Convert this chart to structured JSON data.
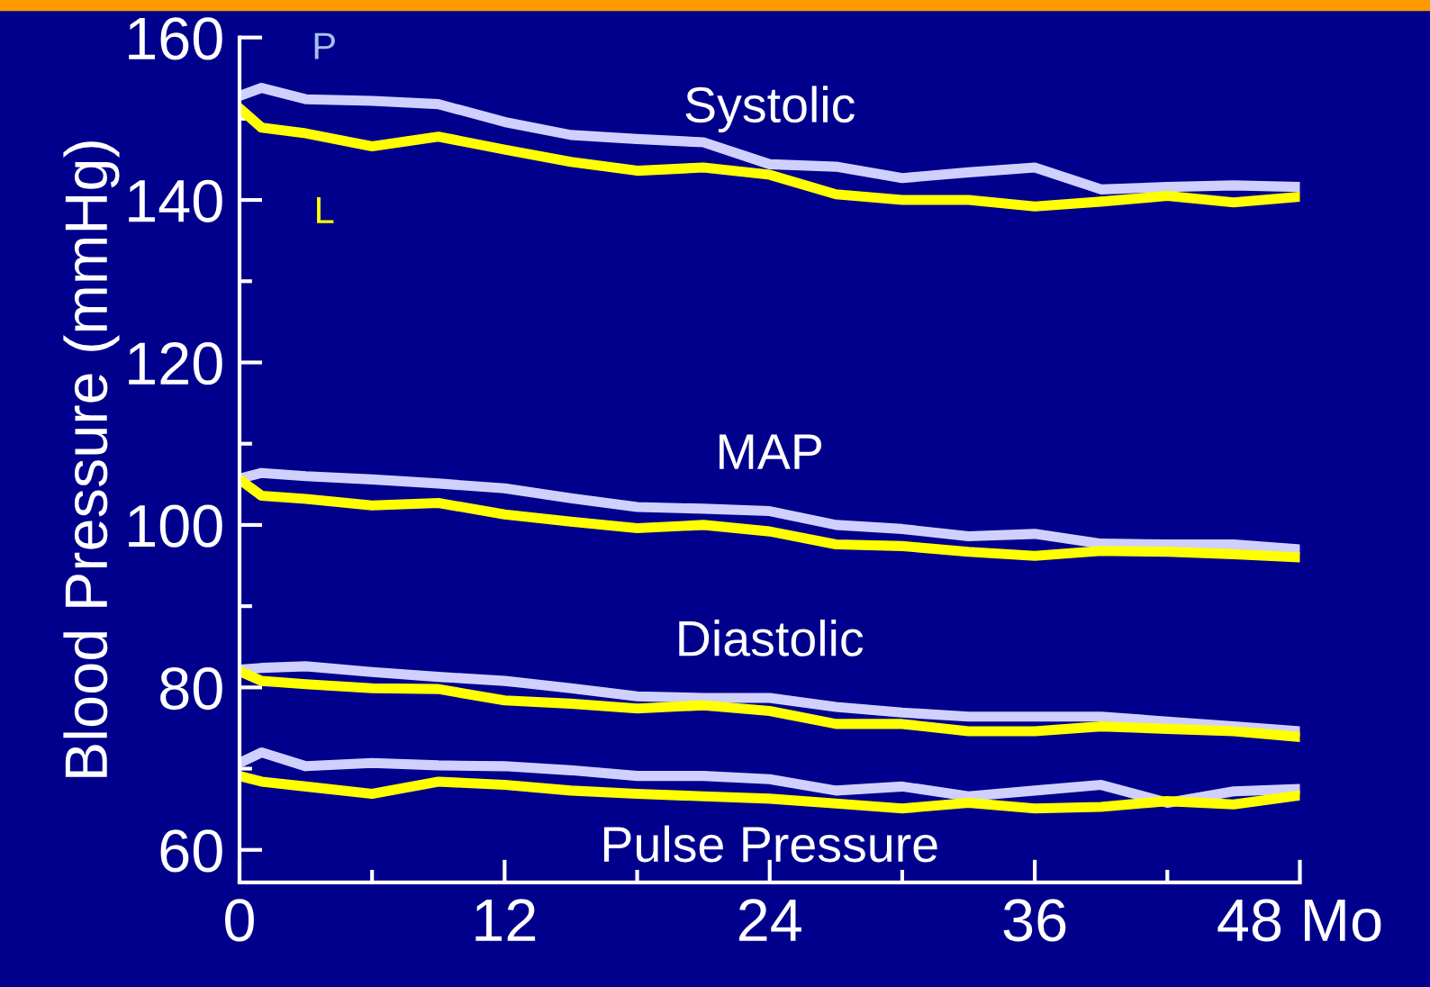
{
  "chart_data": {
    "type": "line",
    "ylabel": "Blood Pressure (mmHg)",
    "x": [
      0,
      1,
      3,
      6,
      9,
      12,
      15,
      18,
      21,
      24,
      27,
      30,
      33,
      36,
      39,
      42,
      45,
      48
    ],
    "series": [
      {
        "name": "P",
        "color": "#d0d0ff",
        "values": [
          152.8,
          153.8,
          152.4,
          152.2,
          151.8,
          149.6,
          148,
          147.5,
          147.1,
          144.4,
          144.1,
          142.7,
          143.4,
          144,
          141.3,
          141.6,
          141.8,
          141.6
        ]
      },
      {
        "name": "L",
        "color": "#ffff00",
        "values": [
          151.3,
          148.9,
          148.2,
          146.6,
          147.8,
          146.2,
          144.7,
          143.6,
          144,
          143.1,
          140.7,
          140,
          140,
          139.2,
          139.8,
          140.5,
          139.7,
          140.4
        ]
      },
      {
        "color": "#d0d0ff",
        "values": [
          105.7,
          106.4,
          106,
          105.6,
          105.1,
          104.5,
          103.3,
          102.2,
          102,
          101.7,
          100,
          99.5,
          98.6,
          98.9,
          97.7,
          97.6,
          97.6,
          97
        ]
      },
      {
        "color": "#ffff00",
        "values": [
          105.6,
          103.6,
          103.2,
          102.4,
          102.7,
          101.3,
          100.4,
          99.6,
          100,
          99.2,
          97.6,
          97.4,
          96.7,
          96.2,
          96.8,
          96.7,
          96.4,
          96
        ]
      },
      {
        "color": "#d0d0ff",
        "values": [
          82.2,
          82.4,
          82.6,
          81.9,
          81.3,
          80.8,
          79.9,
          78.9,
          78.7,
          78.7,
          77.6,
          76.9,
          76.4,
          76.4,
          76.4,
          75.8,
          75.2,
          74.6
        ]
      },
      {
        "color": "#ffff00",
        "values": [
          82,
          80.8,
          80.4,
          79.9,
          79.8,
          78.4,
          78,
          77.4,
          77.8,
          77.1,
          75.5,
          75.5,
          74.6,
          74.6,
          75.2,
          74.9,
          74.6,
          73.9
        ]
      },
      {
        "color": "#d0d0ff",
        "values": [
          70.7,
          72,
          70.3,
          70.7,
          70.4,
          70.3,
          69.8,
          69.1,
          69.1,
          68.7,
          67.3,
          67.8,
          66.6,
          67.3,
          68,
          65.8,
          67.2,
          67.5
        ]
      },
      {
        "color": "#ffff00",
        "values": [
          69.1,
          68.4,
          67.8,
          66.9,
          68.4,
          68,
          67.3,
          66.9,
          66.6,
          66.3,
          65.7,
          65.1,
          65.8,
          65.1,
          65.3,
          66,
          65.6,
          66.7
        ]
      }
    ],
    "annotations": [
      "Systolic",
      "MAP",
      "Diastolic",
      "Pulse Pressure"
    ],
    "xlim": [
      0,
      48
    ],
    "xticks": [
      0,
      {
        "value": 6,
        "label": null
      },
      12,
      {
        "value": 18,
        "label": null
      },
      24,
      {
        "value": 30,
        "label": null
      },
      36,
      {
        "value": 42,
        "label": null
      },
      {
        "value": 48,
        "label": "48 Mo"
      }
    ],
    "ylim": [
      56,
      160
    ],
    "yticks": [
      60,
      {
        "value": 70,
        "label": null
      },
      80,
      {
        "value": 90,
        "label": null
      },
      100,
      {
        "value": 110,
        "label": null
      },
      120,
      {
        "value": 130,
        "label": null
      },
      140,
      {
        "value": 150,
        "label": null
      },
      160
    ],
    "grid": false,
    "legend": false,
    "marker": "none",
    "line_style": "solid"
  }
}
